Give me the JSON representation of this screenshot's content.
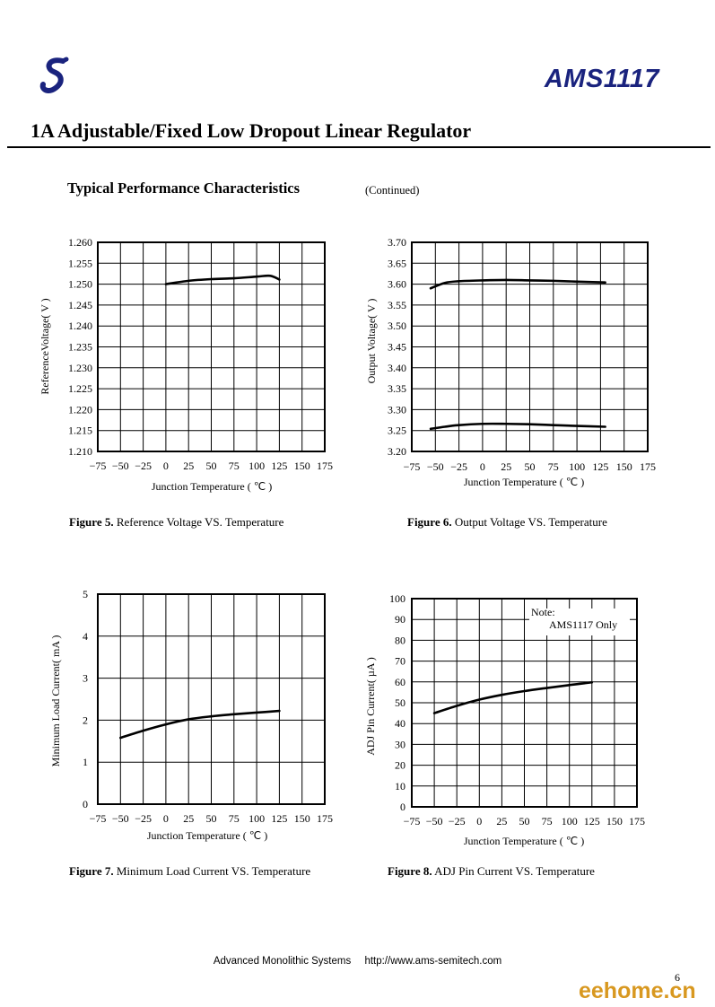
{
  "header": {
    "product": "AMS1117"
  },
  "document": {
    "title": "1A Adjustable/Fixed Low Dropout Linear Regulator",
    "section": "Typical Performance Characteristics",
    "continued": "(Continued)"
  },
  "figures": [
    {
      "label": "Figure 5.",
      "text": "Reference Voltage VS. Temperature"
    },
    {
      "label": "Figure 6.",
      "text": "Output Voltage VS. Temperature"
    },
    {
      "label": "Figure 7.",
      "text": "Minimum Load Current VS. Temperature"
    },
    {
      "label": "Figure 8.",
      "text": "ADJ Pin Current VS. Temperature"
    }
  ],
  "footer": {
    "company": "Advanced Monolithic Systems",
    "url": "http://www.ams-semitech.com",
    "page": "6"
  },
  "watermark": "eehome.cn",
  "colors": {
    "product_title": "#1a237e",
    "watermark": "#d89820",
    "logo": "#1a237e"
  },
  "chart_data": [
    {
      "type": "line",
      "xlabel": "Junction Temperature ( ℃ )",
      "ylabel": "ReferenceVoltage( V )",
      "xticks": [
        "−75",
        "−50",
        "−25",
        "0",
        "25",
        "50",
        "75",
        "100",
        "125",
        "150",
        "175"
      ],
      "yticks": [
        "1.260",
        "1.255",
        "1.250",
        "1.245",
        "1.240",
        "1.235",
        "1.230",
        "1.225",
        "1.220",
        "1.215",
        "1.210"
      ],
      "xlim": [
        -75,
        175
      ],
      "ylim": [
        1.21,
        1.26
      ],
      "grid": true,
      "series": [
        {
          "x": [
            0,
            25,
            50,
            75,
            100,
            115,
            125
          ],
          "y": [
            1.25,
            1.2508,
            1.2512,
            1.2514,
            1.2518,
            1.252,
            1.2511
          ]
        }
      ]
    },
    {
      "type": "line",
      "xlabel": "Junction Temperature ( ℃ )",
      "ylabel": "Output Voltage( V )",
      "xticks": [
        "−75",
        "−50",
        "−25",
        "0",
        "25",
        "50",
        "75",
        "100",
        "125",
        "150",
        "175"
      ],
      "yticks": [
        "3.70",
        "3.65",
        "3.60",
        "3.55",
        "3.50",
        "3.45",
        "3.40",
        "3.35",
        "3.30",
        "3.25",
        "3.20"
      ],
      "xlim": [
        -75,
        175
      ],
      "ylim": [
        3.2,
        3.7
      ],
      "grid": true,
      "series": [
        {
          "x": [
            -55,
            -40,
            -25,
            0,
            25,
            50,
            75,
            100,
            130
          ],
          "y": [
            3.59,
            3.603,
            3.607,
            3.609,
            3.61,
            3.609,
            3.608,
            3.606,
            3.604
          ]
        },
        {
          "x": [
            -55,
            -40,
            -25,
            0,
            25,
            50,
            75,
            100,
            130
          ],
          "y": [
            3.254,
            3.259,
            3.263,
            3.266,
            3.266,
            3.265,
            3.263,
            3.261,
            3.259
          ]
        }
      ]
    },
    {
      "type": "line",
      "xlabel": "Junction Temperature ( ℃ )",
      "ylabel": "Minimum Load Current( mA )",
      "xticks": [
        "−75",
        "−50",
        "−25",
        "0",
        "25",
        "50",
        "75",
        "100",
        "125",
        "150",
        "175"
      ],
      "yticks": [
        "5",
        "4",
        "3",
        "2",
        "1",
        "0"
      ],
      "xlim": [
        -75,
        175
      ],
      "ylim": [
        0,
        5
      ],
      "grid": true,
      "series": [
        {
          "x": [
            -50,
            -25,
            0,
            25,
            50,
            75,
            100,
            125
          ],
          "y": [
            1.58,
            1.75,
            1.9,
            2.02,
            2.09,
            2.14,
            2.18,
            2.22
          ]
        }
      ]
    },
    {
      "type": "line",
      "xlabel": "Junction Temperature ( ℃ )",
      "ylabel": "ADJ Pin Current( µA )",
      "xticks": [
        "−75",
        "−50",
        "−25",
        "0",
        "25",
        "50",
        "75",
        "100",
        "125",
        "150",
        "175"
      ],
      "yticks": [
        "100",
        "90",
        "80",
        "70",
        "60",
        "50",
        "40",
        "30",
        "20",
        "10",
        "0"
      ],
      "xlim": [
        -75,
        175
      ],
      "ylim": [
        0,
        100
      ],
      "grid": true,
      "annotations": [
        "Note:",
        "AMS1117 Only"
      ],
      "series": [
        {
          "x": [
            -50,
            -25,
            0,
            25,
            50,
            75,
            100,
            125
          ],
          "y": [
            45,
            48.5,
            51.5,
            53.8,
            55.6,
            57.1,
            58.5,
            59.8
          ]
        }
      ]
    }
  ]
}
